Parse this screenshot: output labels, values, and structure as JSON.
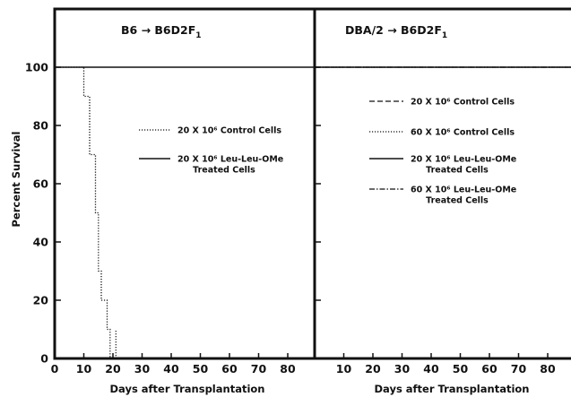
{
  "chart_data": [
    {
      "type": "line",
      "panel": "left",
      "title": "B6 → B6D2F1",
      "title_main": "B6 → B6D2F",
      "title_sub": "1",
      "xlabel": "Days after Transplantation",
      "ylabel": "Percent Survival",
      "xlim": [
        0,
        90
      ],
      "ylim": [
        0,
        120
      ],
      "x_ticks": [
        "0",
        "10",
        "20",
        "30",
        "40",
        "50",
        "60",
        "70",
        "80"
      ],
      "y_ticks": [
        "0",
        "20",
        "40",
        "60",
        "80",
        "100"
      ],
      "grid": false,
      "legend_position": "right-center",
      "series": [
        {
          "name": "20 X 10^6 Control Cells",
          "legend_lines": [
            "20 X 10⁶ Control Cells"
          ],
          "style": "dotted",
          "x": [
            0,
            10,
            10,
            12,
            12,
            14,
            14,
            15,
            15,
            16,
            16,
            18,
            18,
            19,
            19,
            21,
            21
          ],
          "y": [
            100,
            100,
            90,
            90,
            70,
            70,
            50,
            50,
            30,
            30,
            20,
            20,
            10,
            10,
            0,
            0,
            10
          ]
        },
        {
          "name": "20 X 10^6 Leu-Leu-OMe Treated Cells",
          "legend_lines": [
            "20 X 10⁶ Leu-Leu-OMe",
            "Treated Cells"
          ],
          "style": "solid",
          "x": [
            0,
            90
          ],
          "y": [
            100,
            100
          ]
        }
      ]
    },
    {
      "type": "line",
      "panel": "right",
      "title": "DBA/2 → B6D2F1",
      "title_main": "DBA/2 → B6D2F",
      "title_sub": "1",
      "xlabel": "Days after Transplantation",
      "ylabel": "",
      "xlim": [
        0,
        90
      ],
      "ylim": [
        0,
        120
      ],
      "x_ticks": [
        "10",
        "20",
        "30",
        "40",
        "50",
        "60",
        "70",
        "80"
      ],
      "grid": false,
      "legend_position": "right-center",
      "series": [
        {
          "name": "20 X 10^6 Control Cells",
          "legend_lines": [
            "20 X 10⁶ Control Cells"
          ],
          "style": "dashed",
          "x": [
            0,
            90
          ],
          "y": [
            100,
            100
          ]
        },
        {
          "name": "60 X 10^6 Control Cells",
          "legend_lines": [
            "60 X 10⁶ Control Cells"
          ],
          "style": "dotted",
          "x": [
            0,
            90
          ],
          "y": [
            100,
            100
          ]
        },
        {
          "name": "20 X 10^6 Leu-Leu-OMe Treated Cells",
          "legend_lines": [
            "20 X 10⁶ Leu-Leu-OMe",
            "Treated Cells"
          ],
          "style": "solid",
          "x": [
            0,
            90
          ],
          "y": [
            100,
            100
          ]
        },
        {
          "name": "60 X 10^6 Leu-Leu-OMe Treated Cells",
          "legend_lines": [
            "60 X 10⁶ Leu-Leu-OMe",
            "Treated Cells"
          ],
          "style": "dashdot",
          "x": [
            0,
            90
          ],
          "y": [
            100,
            100
          ]
        }
      ]
    }
  ]
}
